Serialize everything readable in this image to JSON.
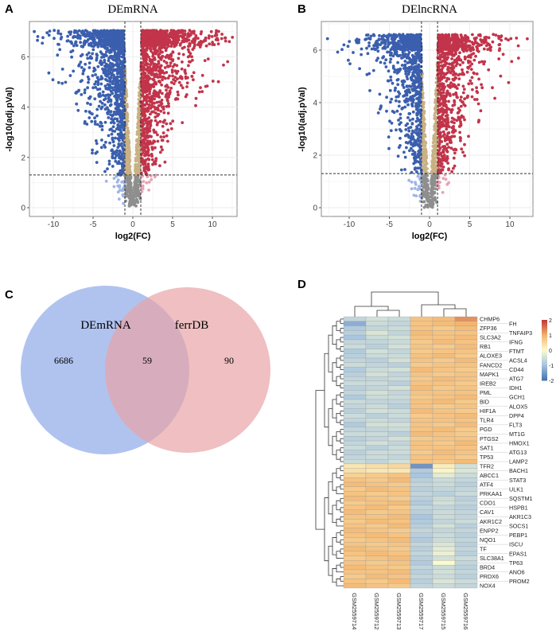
{
  "panels": {
    "a": "A",
    "b": "B",
    "c": "C",
    "d": "D"
  },
  "chart_data": [
    {
      "type": "scatter",
      "title": "DEmRNA",
      "xlabel": "log2(FC)",
      "ylabel": "-log10(adj.pVal)",
      "xlim": [
        -13.2,
        13.2
      ],
      "ylim": [
        -0.3,
        7.3
      ],
      "xticks": [
        "-10",
        "-5",
        "0",
        "5",
        "10"
      ],
      "xtick_values": [
        -10,
        -5,
        0,
        5,
        10
      ],
      "yticks": [
        "0",
        "2",
        "4",
        "6"
      ],
      "ytick_values": [
        0,
        2,
        4,
        6
      ],
      "fc_threshold": [
        -1,
        1
      ],
      "p_threshold": 1.3,
      "ymax": 7.05,
      "seed": 11,
      "n_points": 3200,
      "grid": true,
      "colors": {
        "down": "#3b5fae",
        "up": "#c2344a",
        "ns_sig": "#c9b184",
        "ns": "#8e8e8e",
        "down_weak": "#9fb5e6",
        "up_weak": "#e7a3b4"
      }
    },
    {
      "type": "scatter",
      "title": "DElncRNA",
      "xlabel": "log2(FC)",
      "ylabel": "-log10(adj.pVal)",
      "xlim": [
        -13.2,
        13.2
      ],
      "ylim": [
        -0.3,
        7.0
      ],
      "xticks": [
        "-10",
        "-5",
        "0",
        "5",
        "10"
      ],
      "xtick_values": [
        -10,
        -5,
        0,
        5,
        10
      ],
      "yticks": [
        "0",
        "2",
        "4",
        "6"
      ],
      "ytick_values": [
        0,
        2,
        4,
        6
      ],
      "fc_threshold": [
        -1,
        1
      ],
      "p_threshold": 1.3,
      "ymax": 6.6,
      "seed": 29,
      "n_points": 2400,
      "grid": true,
      "colors": {
        "down": "#3b5fae",
        "up": "#c2344a",
        "ns_sig": "#c9b184",
        "ns": "#8e8e8e",
        "down_weak": "#9fb5e6",
        "up_weak": "#e7a3b4"
      }
    },
    {
      "type": "venn",
      "sets": [
        {
          "label": "DEmRNA",
          "only": "6686",
          "color": "#8faae8"
        },
        {
          "label": "ferrDB",
          "only": "90",
          "color": "#e8a4a8"
        }
      ],
      "intersection": "59"
    },
    {
      "type": "heatmap",
      "columns": [
        "GSM2559714",
        "GSM2559712",
        "GSM2559713",
        "GSM2559717",
        "GSM2559715",
        "GSM2559716"
      ],
      "rows": [
        "CHMP6",
        "FH",
        "ZFP36",
        "TNFAIP3",
        "SLC3A2",
        "IFNG",
        "RB1",
        "FTMT",
        "ALOXE3",
        "ACSL4",
        "FANCD2",
        "CD44",
        "MAPK1",
        "ATG7",
        "IREB2",
        "IDH1",
        "PML",
        "GCH1",
        "BID",
        "ALOX5",
        "HIF1A",
        "DPP4",
        "TLR4",
        "FLT3",
        "PGD",
        "MT1G",
        "PTGS2",
        "HMOX1",
        "SAT1",
        "ATG13",
        "TP53",
        "LAMP2",
        "TFR2",
        "BACH1",
        "ABCC1",
        "STAT3",
        "ATF4",
        "ULK1",
        "PRKAA1",
        "SQSTM1",
        "CDO1",
        "HSPB1",
        "CAV1",
        "AKR1C3",
        "AKR1C2",
        "SOCS1",
        "ENPP2",
        "PEBP1",
        "NQO1",
        "ISCU",
        "TF",
        "EPAS1",
        "SLC38A1",
        "TP63",
        "BRD4",
        "ANO6",
        "PRDX6",
        "PROM2",
        "NOX4"
      ],
      "values": [
        [
          -0.7,
          -0.5,
          -0.6,
          0.8,
          0.9,
          1.3
        ],
        [
          -1.3,
          -0.6,
          -0.7,
          0.8,
          0.9,
          1.0
        ],
        [
          -0.9,
          -0.7,
          -0.6,
          0.8,
          0.7,
          0.9
        ],
        [
          -0.8,
          -0.4,
          -0.7,
          0.9,
          0.8,
          0.8
        ],
        [
          -1.0,
          -0.6,
          -0.5,
          0.8,
          0.8,
          0.9
        ],
        [
          -0.7,
          -0.7,
          -0.6,
          0.7,
          0.9,
          0.8
        ],
        [
          -0.6,
          -0.8,
          -0.5,
          0.8,
          0.7,
          0.9
        ],
        [
          -0.9,
          -0.5,
          -0.7,
          0.7,
          0.8,
          0.8
        ],
        [
          -0.8,
          -0.6,
          -0.6,
          0.8,
          0.9,
          0.7
        ],
        [
          -0.7,
          -0.8,
          -0.5,
          0.8,
          0.7,
          0.9
        ],
        [
          -0.6,
          -0.7,
          -0.8,
          0.7,
          0.8,
          0.8
        ],
        [
          -0.9,
          -0.6,
          -0.5,
          0.9,
          0.8,
          0.7
        ],
        [
          -0.8,
          -0.5,
          -0.7,
          0.8,
          0.7,
          0.8
        ],
        [
          -0.7,
          -0.7,
          -0.6,
          0.7,
          0.9,
          0.8
        ],
        [
          -0.6,
          -0.6,
          -0.8,
          0.8,
          0.8,
          0.7
        ],
        [
          -0.8,
          -0.7,
          -0.5,
          0.9,
          0.7,
          0.8
        ],
        [
          -0.7,
          -0.5,
          -0.7,
          0.8,
          0.8,
          0.8
        ],
        [
          -0.9,
          -0.6,
          -0.6,
          0.7,
          0.8,
          0.9
        ],
        [
          -0.6,
          -0.7,
          -0.7,
          0.8,
          0.9,
          0.7
        ],
        [
          -0.7,
          -0.6,
          -0.8,
          0.8,
          0.7,
          0.8
        ],
        [
          -0.8,
          -0.5,
          -0.6,
          0.9,
          0.8,
          0.7
        ],
        [
          -0.6,
          -0.8,
          -0.6,
          0.7,
          0.8,
          0.9
        ],
        [
          -0.7,
          -0.6,
          -0.7,
          0.8,
          0.8,
          0.8
        ],
        [
          -0.9,
          -0.5,
          -0.5,
          0.8,
          0.7,
          0.9
        ],
        [
          -0.7,
          -0.7,
          -0.6,
          0.8,
          0.9,
          0.7
        ],
        [
          -0.6,
          -0.6,
          -0.8,
          0.9,
          0.8,
          0.7
        ],
        [
          -0.8,
          -0.7,
          -0.5,
          0.7,
          0.8,
          0.8
        ],
        [
          -0.7,
          -0.5,
          -0.7,
          0.8,
          0.7,
          0.9
        ],
        [
          -0.6,
          -0.8,
          -0.6,
          0.8,
          0.8,
          0.8
        ],
        [
          -0.8,
          -0.6,
          -0.6,
          0.7,
          0.9,
          0.8
        ],
        [
          -0.7,
          -0.6,
          -0.7,
          0.8,
          0.8,
          0.7
        ],
        [
          -0.6,
          -0.7,
          -0.5,
          0.8,
          0.7,
          0.9
        ],
        [
          0.3,
          0.4,
          0.5,
          -1.6,
          0.2,
          -0.5
        ],
        [
          0.4,
          0.3,
          0.3,
          -0.9,
          0.1,
          -0.4
        ],
        [
          0.6,
          0.7,
          0.8,
          -1.0,
          -0.3,
          -0.6
        ],
        [
          0.8,
          0.7,
          0.9,
          -0.8,
          -0.6,
          -0.7
        ],
        [
          0.9,
          0.8,
          0.7,
          -0.7,
          -0.6,
          -0.8
        ],
        [
          0.7,
          0.9,
          0.8,
          -0.8,
          -0.7,
          -0.7
        ],
        [
          0.8,
          0.7,
          0.8,
          -0.7,
          -0.8,
          -0.6
        ],
        [
          0.9,
          0.8,
          0.7,
          -0.8,
          -0.6,
          -0.8
        ],
        [
          0.7,
          0.8,
          0.9,
          -0.9,
          -0.5,
          -0.7
        ],
        [
          0.8,
          0.9,
          0.7,
          -0.7,
          -0.7,
          -0.8
        ],
        [
          0.9,
          0.7,
          0.8,
          -0.8,
          -0.6,
          -0.7
        ],
        [
          0.8,
          0.8,
          0.9,
          -1.0,
          -0.6,
          -0.7
        ],
        [
          0.7,
          0.9,
          0.8,
          -0.9,
          -0.7,
          -0.6
        ],
        [
          0.8,
          0.7,
          0.9,
          -0.8,
          -0.5,
          -0.8
        ],
        [
          0.9,
          0.8,
          0.7,
          -0.7,
          -0.7,
          -0.7
        ],
        [
          0.8,
          0.9,
          0.8,
          -0.8,
          -0.6,
          -0.8
        ],
        [
          0.7,
          0.8,
          0.9,
          -0.9,
          -0.6,
          -0.7
        ],
        [
          0.8,
          0.7,
          0.8,
          -0.7,
          -0.4,
          -0.8
        ],
        [
          0.9,
          0.8,
          0.7,
          -0.8,
          -0.3,
          -0.7
        ],
        [
          0.8,
          0.9,
          0.8,
          -0.7,
          -0.2,
          -0.8
        ],
        [
          0.7,
          0.8,
          0.9,
          -0.8,
          -0.5,
          -0.6
        ],
        [
          0.8,
          0.7,
          0.8,
          -0.9,
          0.0,
          -0.7
        ],
        [
          0.9,
          0.8,
          0.7,
          -0.7,
          -0.6,
          -0.8
        ],
        [
          0.8,
          0.8,
          0.9,
          -0.8,
          -0.5,
          -0.7
        ],
        [
          0.7,
          0.9,
          0.8,
          -0.7,
          -0.6,
          -0.8
        ],
        [
          0.8,
          0.7,
          0.9,
          -0.8,
          -0.4,
          -0.6
        ],
        [
          0.9,
          0.8,
          0.7,
          -0.7,
          -0.6,
          -0.7
        ]
      ],
      "legend_ticks": [
        "2",
        "1",
        "0",
        "-1",
        "-2"
      ],
      "scale_min": -2,
      "scale_max": 2,
      "colors": [
        "#4a74b2",
        "#a9c5df",
        "#fbfbd0",
        "#f3b56e",
        "#c33b37"
      ]
    }
  ]
}
